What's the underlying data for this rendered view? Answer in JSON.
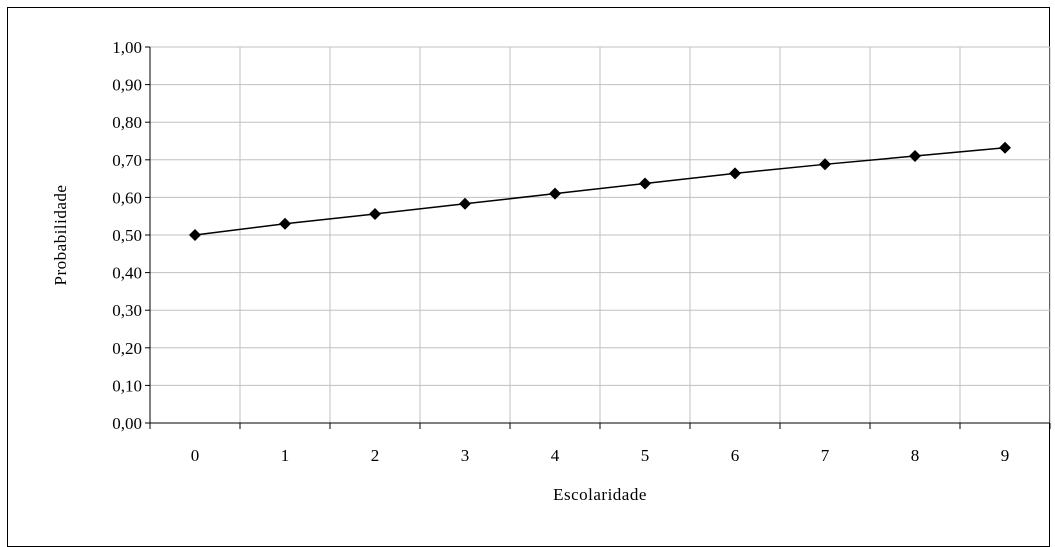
{
  "chart_data": {
    "type": "line",
    "title": "",
    "xlabel": "Escolaridade",
    "ylabel": "Probabilidade",
    "x": [
      0,
      1,
      2,
      3,
      4,
      5,
      6,
      7,
      8,
      9
    ],
    "x_tick_labels": [
      "0",
      "1",
      "2",
      "3",
      "4",
      "5",
      "6",
      "7",
      "8",
      "9"
    ],
    "y_tick_labels": [
      "0,00",
      "0,10",
      "0,20",
      "0,30",
      "0,40",
      "0,50",
      "0,60",
      "0,70",
      "0,80",
      "0,90",
      "1,00"
    ],
    "y_ticks": [
      0,
      0.1,
      0.2,
      0.3,
      0.4,
      0.5,
      0.6,
      0.7,
      0.8,
      0.9,
      1.0
    ],
    "ylim": [
      0,
      1
    ],
    "series": [
      {
        "values": [
          0.5,
          0.53,
          0.556,
          0.583,
          0.61,
          0.637,
          0.664,
          0.688,
          0.71,
          0.732
        ],
        "marker": "diamond"
      }
    ],
    "grid": true,
    "legend": "none",
    "colors": {
      "line": "#000000",
      "marker": "#000000",
      "grid": "#c0c0c0",
      "axis": "#000000"
    }
  }
}
